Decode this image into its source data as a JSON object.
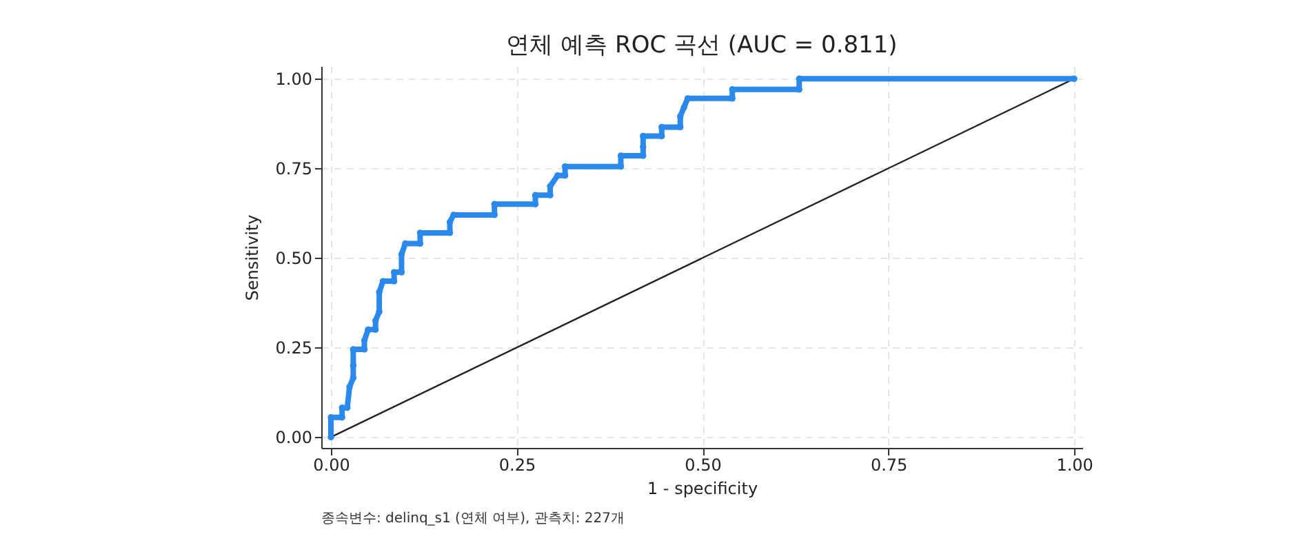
{
  "chart_data": {
    "type": "line",
    "title": "연체 예측 ROC 곡선 (AUC = 0.811)",
    "xlabel": "1 - specificity",
    "ylabel": "Sensitivity",
    "annotations": [
      "종속변수: delinq_s1 (연체 여부), 관측치: 227개"
    ],
    "xlim": [
      -0.013,
      1.011
    ],
    "ylim": [
      -0.03,
      1.035
    ],
    "xticks": [
      {
        "value": 0,
        "label": "0.00"
      },
      {
        "value": 0.25,
        "label": "0.25"
      },
      {
        "value": 0.5,
        "label": "0.50"
      },
      {
        "value": 0.75,
        "label": "0.75"
      },
      {
        "value": 1,
        "label": "1.00"
      }
    ],
    "yticks": [
      {
        "value": 0,
        "label": "0.00"
      },
      {
        "value": 0.25,
        "label": "0.25"
      },
      {
        "value": 0.5,
        "label": "0.50"
      },
      {
        "value": 0.75,
        "label": "0.75"
      },
      {
        "value": 1,
        "label": "1.00"
      }
    ],
    "grid": true,
    "marker": "circle",
    "series": [
      {
        "color": "#2a89ea",
        "x": [
          0,
          0,
          0.015,
          0.015,
          0.022,
          0.025,
          0.03,
          0.03,
          0.03,
          0.045,
          0.045,
          0.05,
          0.06,
          0.06,
          0.065,
          0.065,
          0.07,
          0.085,
          0.085,
          0.095,
          0.095,
          0.1,
          0.12,
          0.12,
          0.16,
          0.16,
          0.165,
          0.22,
          0.22,
          0.275,
          0.275,
          0.295,
          0.295,
          0.305,
          0.315,
          0.315,
          0.39,
          0.39,
          0.42,
          0.42,
          0.42,
          0.445,
          0.445,
          0.47,
          0.47,
          0.475,
          0.48,
          0.54,
          0.54,
          0.63,
          0.63,
          1
        ],
        "values": [
          0,
          0.055,
          0.055,
          0.082,
          0.082,
          0.14,
          0.165,
          0.2,
          0.245,
          0.245,
          0.27,
          0.3,
          0.3,
          0.325,
          0.35,
          0.405,
          0.435,
          0.435,
          0.46,
          0.46,
          0.51,
          0.54,
          0.54,
          0.57,
          0.57,
          0.6,
          0.62,
          0.62,
          0.65,
          0.65,
          0.675,
          0.675,
          0.7,
          0.73,
          0.73,
          0.755,
          0.755,
          0.785,
          0.785,
          0.81,
          0.84,
          0.84,
          0.865,
          0.865,
          0.895,
          0.92,
          0.945,
          0.945,
          0.97,
          0.97,
          1,
          1
        ]
      },
      {
        "color": "#222222",
        "marker": "none",
        "x": [
          0,
          1
        ],
        "values": [
          0,
          1
        ]
      }
    ]
  }
}
